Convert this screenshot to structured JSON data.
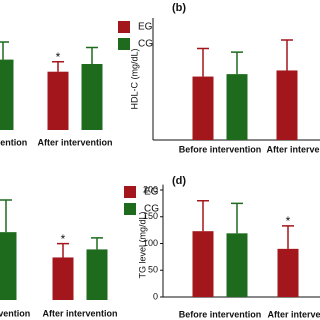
{
  "chart_data": [
    {
      "type": "bar",
      "categories": [
        "Before intervention",
        "After intervention"
      ],
      "ylim": [
        0,
        100
      ],
      "series": [
        {
          "name": "EG",
          "color": "#a3161b",
          "values": [
            null,
            53
          ],
          "errors": [
            null,
            9
          ]
        },
        {
          "name": "CG",
          "color": "#1e6b1e",
          "values": [
            64,
            60
          ],
          "errors": [
            16,
            15
          ]
        }
      ],
      "annotations": [
        {
          "text": "*",
          "series": 0,
          "category": 1
        }
      ]
    },
    {
      "type": "bar",
      "label": "(b)",
      "y_label": "HDL-C (mg/dL)",
      "categories": [
        "Before intervention",
        "After intervention"
      ],
      "ylim": [
        0,
        100
      ],
      "series": [
        {
          "color": "#a3161b",
          "values": [
            52,
            57
          ],
          "errors": [
            23,
            25
          ]
        },
        {
          "color": "#1e6b1e",
          "values": [
            54,
            null
          ],
          "errors": [
            18,
            null
          ]
        }
      ]
    },
    {
      "type": "bar",
      "categories": [
        "Before intervention",
        "After intervention"
      ],
      "ylim": [
        0,
        100
      ],
      "series": [
        {
          "name": "EG",
          "color": "#a3161b",
          "values": [
            null,
            37
          ],
          "errors": [
            null,
            12
          ]
        },
        {
          "name": "CG",
          "color": "#1e6b1e",
          "values": [
            59,
            44
          ],
          "errors": [
            28,
            10
          ]
        }
      ],
      "annotations": [
        {
          "text": "*",
          "series": 0,
          "category": 1
        }
      ]
    },
    {
      "type": "bar",
      "label": "(d)",
      "y_label": "TG level (mg/dL)",
      "categories": [
        "Before intervention",
        "After intervention"
      ],
      "ylim": [
        0,
        210
      ],
      "yticks": [
        0,
        50,
        100,
        150,
        200
      ],
      "series": [
        {
          "color": "#a3161b",
          "values": [
            123,
            90
          ],
          "errors": [
            57,
            43
          ]
        },
        {
          "color": "#1e6b1e",
          "values": [
            119,
            null
          ],
          "errors": [
            56,
            null
          ]
        }
      ],
      "annotations": [
        {
          "text": "*",
          "series": 0,
          "category": 1
        }
      ]
    }
  ]
}
